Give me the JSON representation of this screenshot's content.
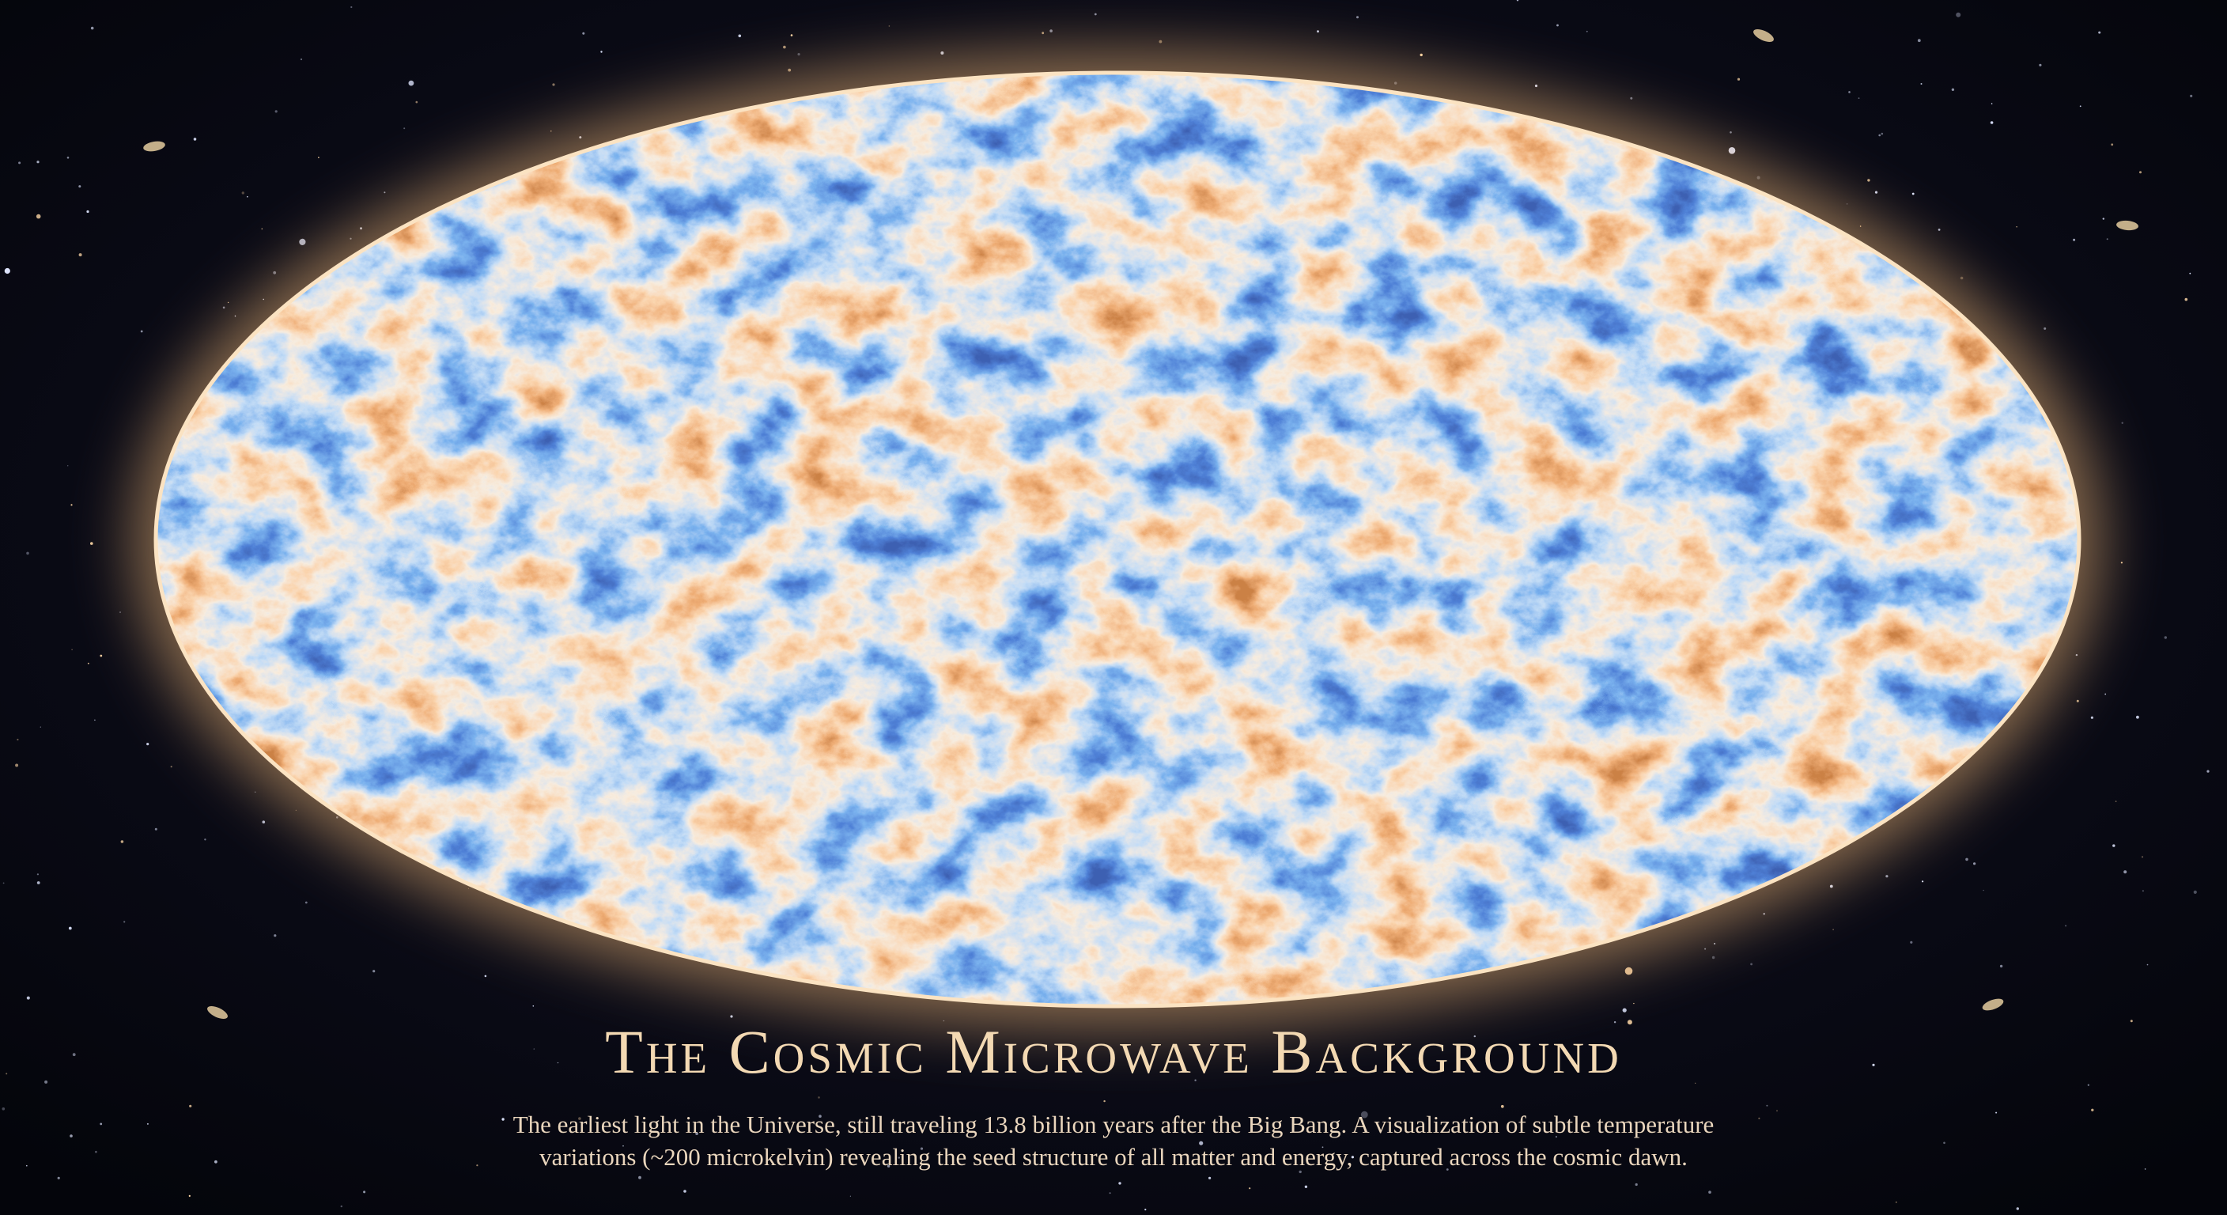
{
  "title": "The Cosmic Microwave Background",
  "caption": [
    "The earliest light in the Universe, still traveling 13.8 billion years after the Big Bang. A visualization of subtle temperature",
    "variations (~200 microkelvin) revealing the seed structure of all matter and energy, captured across the cosmic dawn."
  ]
}
